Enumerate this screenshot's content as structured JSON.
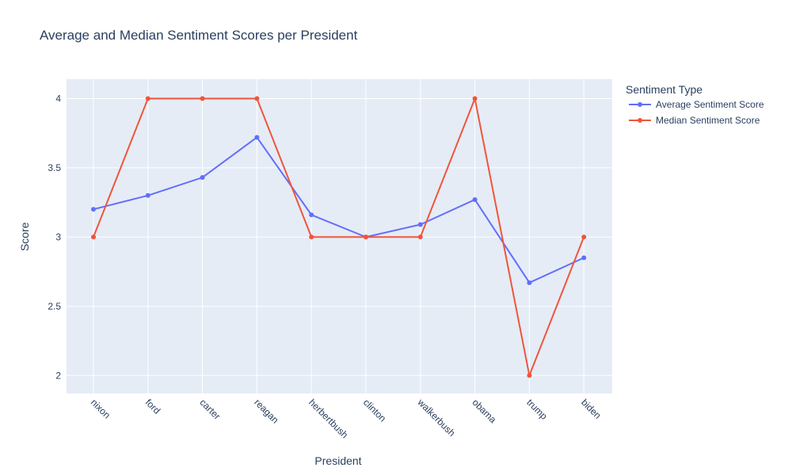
{
  "chart_data": {
    "type": "line",
    "title": "Average and Median Sentiment Scores per President",
    "xlabel": "President",
    "ylabel": "Score",
    "categories": [
      "nixon",
      "ford",
      "carter",
      "reagan",
      "herbertbush",
      "clinton",
      "walkerbush",
      "obama",
      "trump",
      "biden"
    ],
    "ylim": [
      1.87,
      4.14
    ],
    "yticks": [
      "2",
      "2.5",
      "3",
      "3.5",
      "4"
    ],
    "yticks_values": [
      2,
      2.5,
      3,
      3.5,
      4
    ],
    "grid": true,
    "legend": {
      "title": "Sentiment Type",
      "placement": "top-right"
    },
    "series": [
      {
        "name": "Average Sentiment Score",
        "color": "#636efa",
        "values": [
          3.2,
          3.3,
          3.43,
          3.72,
          3.16,
          3.0,
          3.09,
          3.27,
          2.67,
          2.85
        ]
      },
      {
        "name": "Median Sentiment Score",
        "color": "#ef553b",
        "values": [
          3,
          4,
          4,
          4,
          3,
          3,
          3,
          4,
          2,
          3
        ]
      }
    ],
    "colors": {
      "plot_background": "#e5ecf6",
      "gridline": "#ffffff",
      "text": "#2a3f5f"
    }
  }
}
